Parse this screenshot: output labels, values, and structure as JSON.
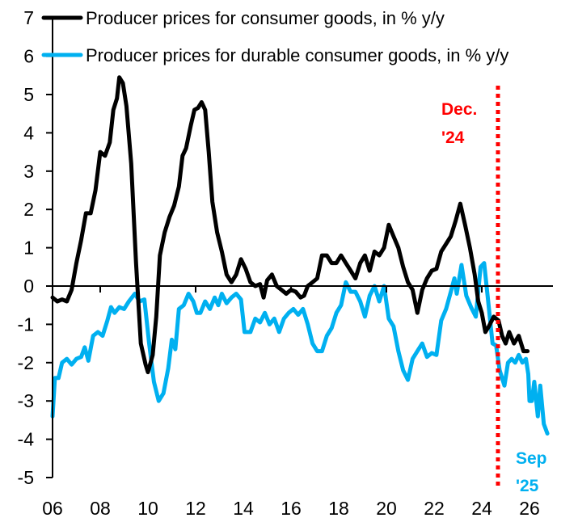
{
  "chart_data": {
    "type": "line",
    "title": "",
    "xlabel": "",
    "ylabel": "",
    "xlim": [
      2006,
      2026.5
    ],
    "ylim": [
      -5,
      7
    ],
    "yticks": [
      7,
      6,
      5,
      4,
      3,
      2,
      1,
      0,
      -1,
      -2,
      -3,
      -4,
      -5
    ],
    "xticks": [
      {
        "value": 2006,
        "label": "06"
      },
      {
        "value": 2008,
        "label": "08"
      },
      {
        "value": 2010,
        "label": "10"
      },
      {
        "value": 2012,
        "label": "12"
      },
      {
        "value": 2014,
        "label": "14"
      },
      {
        "value": 2016,
        "label": "16"
      },
      {
        "value": 2018,
        "label": "18"
      },
      {
        "value": 2020,
        "label": "20"
      },
      {
        "value": 2022,
        "label": "22"
      },
      {
        "value": 2024,
        "label": "24"
      },
      {
        "value": 2026,
        "label": "26"
      }
    ],
    "grid": false,
    "legend_position": "top-left",
    "series": [
      {
        "name": "Producer prices for consumer goods, in % y/y",
        "color": "#000000",
        "points": [
          [
            2006.0,
            -0.3
          ],
          [
            2006.2,
            -0.4
          ],
          [
            2006.4,
            -0.35
          ],
          [
            2006.6,
            -0.4
          ],
          [
            2006.8,
            -0.1
          ],
          [
            2007.0,
            0.6
          ],
          [
            2007.2,
            1.2
          ],
          [
            2007.4,
            1.9
          ],
          [
            2007.6,
            1.9
          ],
          [
            2007.8,
            2.5
          ],
          [
            2008.0,
            3.5
          ],
          [
            2008.2,
            3.4
          ],
          [
            2008.4,
            3.75
          ],
          [
            2008.55,
            4.6
          ],
          [
            2008.7,
            4.9
          ],
          [
            2008.8,
            5.45
          ],
          [
            2008.95,
            5.3
          ],
          [
            2009.1,
            4.7
          ],
          [
            2009.3,
            3.2
          ],
          [
            2009.5,
            0.6
          ],
          [
            2009.7,
            -1.5
          ],
          [
            2009.9,
            -2.05
          ],
          [
            2010.0,
            -2.25
          ],
          [
            2010.2,
            -1.8
          ],
          [
            2010.35,
            -0.8
          ],
          [
            2010.5,
            0.8
          ],
          [
            2010.7,
            1.4
          ],
          [
            2010.9,
            1.8
          ],
          [
            2011.1,
            2.1
          ],
          [
            2011.3,
            2.6
          ],
          [
            2011.45,
            3.4
          ],
          [
            2011.6,
            3.6
          ],
          [
            2011.8,
            4.2
          ],
          [
            2011.95,
            4.6
          ],
          [
            2012.1,
            4.65
          ],
          [
            2012.25,
            4.8
          ],
          [
            2012.4,
            4.6
          ],
          [
            2012.55,
            3.5
          ],
          [
            2012.7,
            2.2
          ],
          [
            2012.9,
            1.4
          ],
          [
            2013.1,
            0.9
          ],
          [
            2013.3,
            0.3
          ],
          [
            2013.5,
            0.1
          ],
          [
            2013.7,
            0.3
          ],
          [
            2013.9,
            0.7
          ],
          [
            2014.1,
            0.45
          ],
          [
            2014.3,
            0.1
          ],
          [
            2014.5,
            0.0
          ],
          [
            2014.7,
            0.05
          ],
          [
            2014.85,
            -0.3
          ],
          [
            2015.0,
            0.15
          ],
          [
            2015.2,
            0.3
          ],
          [
            2015.4,
            0.0
          ],
          [
            2015.6,
            -0.1
          ],
          [
            2015.8,
            -0.2
          ],
          [
            2016.0,
            -0.1
          ],
          [
            2016.2,
            -0.15
          ],
          [
            2016.4,
            -0.3
          ],
          [
            2016.55,
            -0.25
          ],
          [
            2016.7,
            0.0
          ],
          [
            2016.9,
            0.1
          ],
          [
            2017.1,
            0.2
          ],
          [
            2017.3,
            0.8
          ],
          [
            2017.5,
            0.8
          ],
          [
            2017.7,
            0.6
          ],
          [
            2017.9,
            0.6
          ],
          [
            2018.1,
            0.8
          ],
          [
            2018.3,
            0.6
          ],
          [
            2018.5,
            0.4
          ],
          [
            2018.7,
            0.2
          ],
          [
            2018.9,
            0.6
          ],
          [
            2019.1,
            0.8
          ],
          [
            2019.3,
            0.4
          ],
          [
            2019.5,
            0.9
          ],
          [
            2019.7,
            0.8
          ],
          [
            2019.9,
            1.0
          ],
          [
            2020.1,
            1.6
          ],
          [
            2020.3,
            1.3
          ],
          [
            2020.5,
            1.0
          ],
          [
            2020.7,
            0.5
          ],
          [
            2020.9,
            0.1
          ],
          [
            2021.1,
            -0.1
          ],
          [
            2021.3,
            -0.7
          ],
          [
            2021.5,
            -0.1
          ],
          [
            2021.7,
            0.2
          ],
          [
            2021.9,
            0.4
          ],
          [
            2022.1,
            0.45
          ],
          [
            2022.3,
            0.9
          ],
          [
            2022.5,
            1.1
          ],
          [
            2022.7,
            1.3
          ],
          [
            2022.9,
            1.7
          ],
          [
            2023.1,
            2.15
          ],
          [
            2023.3,
            1.6
          ],
          [
            2023.5,
            1.0
          ],
          [
            2023.7,
            0.3
          ],
          [
            2023.85,
            -0.4
          ],
          [
            2024.0,
            -0.7
          ],
          [
            2024.15,
            -1.2
          ],
          [
            2024.3,
            -1.05
          ],
          [
            2024.5,
            -0.8
          ],
          [
            2024.7,
            -0.9
          ],
          [
            2024.85,
            -1.3
          ],
          [
            2025.0,
            -1.5
          ],
          [
            2025.15,
            -1.2
          ],
          [
            2025.35,
            -1.5
          ],
          [
            2025.55,
            -1.3
          ],
          [
            2025.75,
            -1.7
          ],
          [
            2025.92,
            -1.7
          ]
        ]
      },
      {
        "name": "Producer prices for durable consumer goods, in % y/y",
        "color": "#00B0F0",
        "points": [
          [
            2006.0,
            -3.4
          ],
          [
            2006.1,
            -2.4
          ],
          [
            2006.25,
            -2.4
          ],
          [
            2006.4,
            -2.0
          ],
          [
            2006.6,
            -1.9
          ],
          [
            2006.8,
            -2.05
          ],
          [
            2007.0,
            -1.9
          ],
          [
            2007.2,
            -1.85
          ],
          [
            2007.35,
            -1.6
          ],
          [
            2007.5,
            -1.95
          ],
          [
            2007.7,
            -1.3
          ],
          [
            2007.9,
            -1.2
          ],
          [
            2008.1,
            -1.3
          ],
          [
            2008.3,
            -0.9
          ],
          [
            2008.45,
            -0.55
          ],
          [
            2008.6,
            -0.7
          ],
          [
            2008.8,
            -0.55
          ],
          [
            2009.0,
            -0.6
          ],
          [
            2009.2,
            -0.4
          ],
          [
            2009.45,
            -0.2
          ],
          [
            2009.65,
            -0.4
          ],
          [
            2009.85,
            -0.35
          ],
          [
            2010.05,
            -1.5
          ],
          [
            2010.25,
            -2.5
          ],
          [
            2010.45,
            -3.0
          ],
          [
            2010.65,
            -2.8
          ],
          [
            2010.85,
            -2.15
          ],
          [
            2011.0,
            -1.4
          ],
          [
            2011.15,
            -1.65
          ],
          [
            2011.3,
            -0.6
          ],
          [
            2011.5,
            -0.5
          ],
          [
            2011.7,
            -0.2
          ],
          [
            2011.9,
            -0.4
          ],
          [
            2012.05,
            -0.7
          ],
          [
            2012.2,
            -0.7
          ],
          [
            2012.4,
            -0.4
          ],
          [
            2012.6,
            -0.6
          ],
          [
            2012.8,
            -0.3
          ],
          [
            2012.95,
            -0.5
          ],
          [
            2013.1,
            -0.2
          ],
          [
            2013.3,
            -0.45
          ],
          [
            2013.5,
            -0.3
          ],
          [
            2013.7,
            -0.2
          ],
          [
            2013.9,
            -0.35
          ],
          [
            2014.05,
            -1.2
          ],
          [
            2014.3,
            -1.2
          ],
          [
            2014.5,
            -0.85
          ],
          [
            2014.7,
            -0.95
          ],
          [
            2014.9,
            -0.7
          ],
          [
            2015.1,
            -1.0
          ],
          [
            2015.3,
            -0.85
          ],
          [
            2015.5,
            -1.2
          ],
          [
            2015.7,
            -0.85
          ],
          [
            2015.9,
            -0.7
          ],
          [
            2016.1,
            -0.6
          ],
          [
            2016.3,
            -0.75
          ],
          [
            2016.5,
            -0.6
          ],
          [
            2016.7,
            -1.0
          ],
          [
            2016.9,
            -1.5
          ],
          [
            2017.1,
            -1.7
          ],
          [
            2017.3,
            -1.7
          ],
          [
            2017.5,
            -1.3
          ],
          [
            2017.7,
            -1.1
          ],
          [
            2017.9,
            -0.7
          ],
          [
            2018.1,
            -0.5
          ],
          [
            2018.3,
            0.1
          ],
          [
            2018.5,
            -0.15
          ],
          [
            2018.7,
            -0.15
          ],
          [
            2018.9,
            -0.4
          ],
          [
            2019.1,
            -0.8
          ],
          [
            2019.3,
            -0.25
          ],
          [
            2019.5,
            0.0
          ],
          [
            2019.7,
            -0.4
          ],
          [
            2019.9,
            0.0
          ],
          [
            2020.1,
            -0.85
          ],
          [
            2020.3,
            -1.05
          ],
          [
            2020.5,
            -1.7
          ],
          [
            2020.7,
            -2.2
          ],
          [
            2020.9,
            -2.45
          ],
          [
            2021.1,
            -1.9
          ],
          [
            2021.3,
            -1.7
          ],
          [
            2021.5,
            -1.5
          ],
          [
            2021.7,
            -1.85
          ],
          [
            2021.9,
            -1.75
          ],
          [
            2022.1,
            -1.8
          ],
          [
            2022.3,
            -0.9
          ],
          [
            2022.5,
            -0.6
          ],
          [
            2022.7,
            -0.15
          ],
          [
            2022.85,
            0.2
          ],
          [
            2022.95,
            -0.2
          ],
          [
            2023.15,
            0.55
          ],
          [
            2023.35,
            -0.25
          ],
          [
            2023.55,
            -0.55
          ],
          [
            2023.75,
            -0.8
          ],
          [
            2023.95,
            0.5
          ],
          [
            2024.1,
            0.6
          ],
          [
            2024.25,
            -0.3
          ],
          [
            2024.45,
            -1.5
          ],
          [
            2024.6,
            -1.55
          ],
          [
            2024.75,
            -2.2
          ],
          [
            2024.95,
            -2.6
          ],
          [
            2025.1,
            -2.0
          ],
          [
            2025.25,
            -1.9
          ],
          [
            2025.4,
            -2.0
          ],
          [
            2025.55,
            -1.8
          ],
          [
            2025.7,
            -2.0
          ],
          [
            2025.85,
            -1.9
          ],
          [
            2025.95,
            -2.3
          ],
          [
            2026.0,
            -3.0
          ],
          [
            2026.1,
            -3.0
          ],
          [
            2026.2,
            -2.5
          ],
          [
            2026.35,
            -3.4
          ],
          [
            2026.45,
            -2.6
          ],
          [
            2026.6,
            -3.6
          ],
          [
            2026.75,
            -3.85
          ]
        ]
      }
    ],
    "annotations": [
      {
        "type": "vline",
        "x": 2024.92,
        "label_lines": [
          "Dec.",
          "'24"
        ],
        "color": "#FF0000",
        "style": "dotted"
      },
      {
        "type": "label",
        "label_lines": [
          "Sep",
          "'25"
        ],
        "color": "#00B0F0"
      }
    ]
  }
}
